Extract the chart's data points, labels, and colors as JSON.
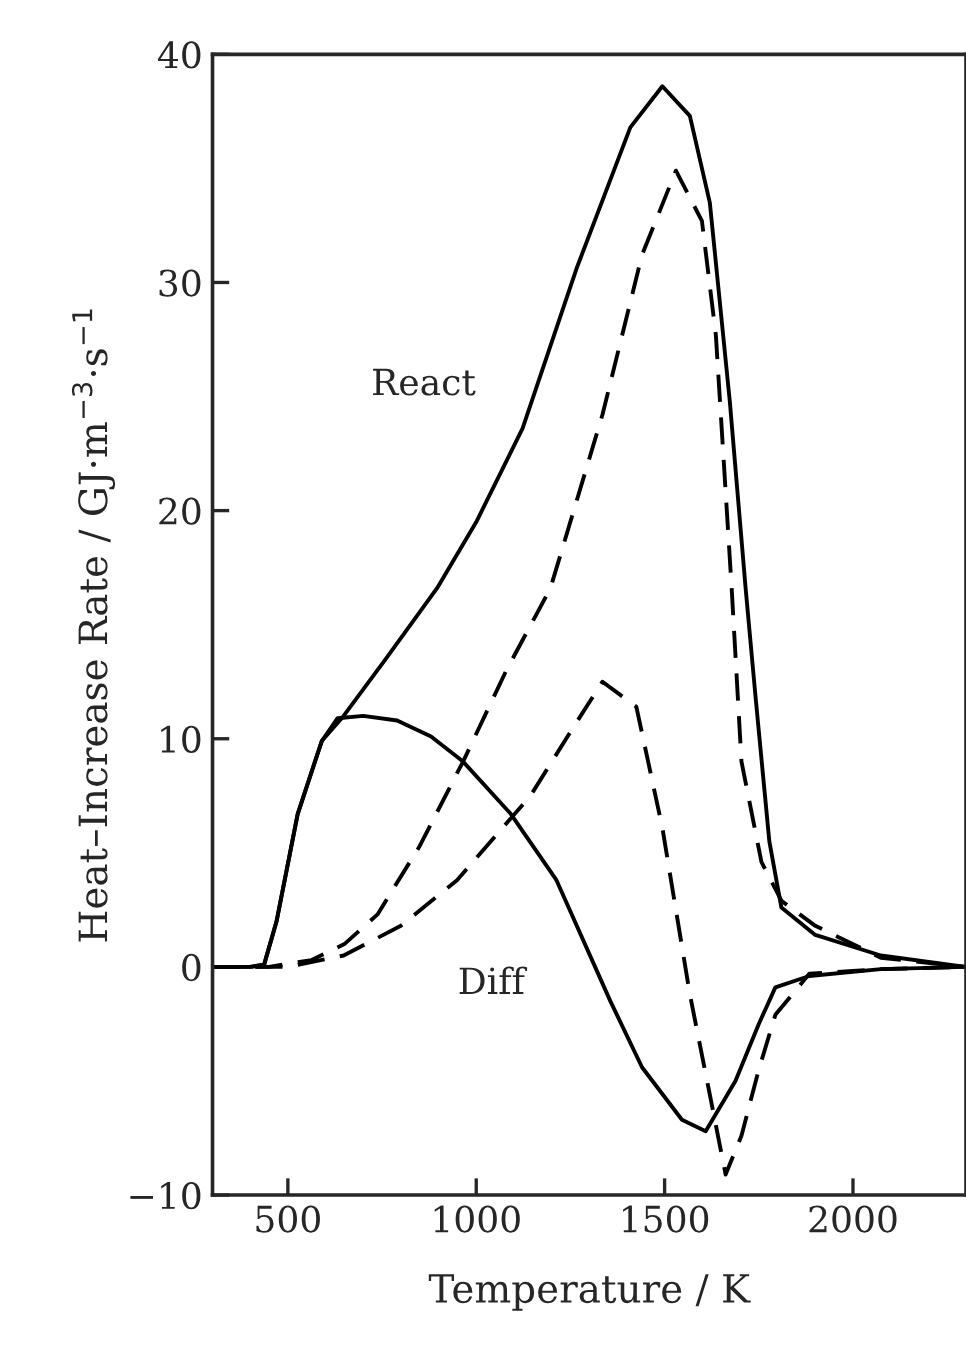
{
  "chart_data": {
    "type": "line",
    "xlabel": "Temperature / K",
    "ylabel": "Heat–Increase Rate / GJ·m$^{−3}$·s$^{−1}$",
    "xlim": [
      300,
      2300
    ],
    "ylim": [
      -10,
      40
    ],
    "xticks": [
      500,
      1000,
      1500,
      2000
    ],
    "yticks": [
      -10,
      0,
      10,
      20,
      30,
      40
    ],
    "grid": false,
    "marker": "none",
    "series": [
      {
        "color": "#000000",
        "line_style": "solid",
        "x": [
          300,
          400,
          437,
          470,
          526,
          590,
          648,
          760,
          896,
          1000,
          1123,
          1266,
          1409,
          1494,
          1567,
          1620,
          1673,
          1715,
          1741,
          1778,
          1810,
          1900,
          2074,
          2300
        ],
        "values": [
          0,
          0,
          0.1,
          2.0,
          6.7,
          9.9,
          11.0,
          13.5,
          16.6,
          19.5,
          23.6,
          30.6,
          36.8,
          38.6,
          37.3,
          33.5,
          24.8,
          16.6,
          11.9,
          5.5,
          2.6,
          1.4,
          0.5,
          0
        ]
      },
      {
        "color": "#000000",
        "line_style": "dashed",
        "x": [
          300,
          450,
          563,
          650,
          738,
          850,
          965,
          1080,
          1197,
          1335,
          1440,
          1530,
          1599,
          1636,
          1678,
          1704,
          1757,
          1810,
          1900,
          2074,
          2300
        ],
        "values": [
          0,
          0,
          0.3,
          1.0,
          2.3,
          5.3,
          9.0,
          13.0,
          16.6,
          24.2,
          31.2,
          34.9,
          32.7,
          27.7,
          16.6,
          9.0,
          4.6,
          2.9,
          1.8,
          0.4,
          0
        ]
      },
      {
        "color": "#000000",
        "line_style": "solid",
        "x": [
          300,
          400,
          437,
          470,
          526,
          590,
          632,
          700,
          790,
          880,
          965,
          1092,
          1213,
          1356,
          1440,
          1546,
          1609,
          1688,
          1750,
          1794,
          1884,
          2074,
          2300
        ],
        "values": [
          0,
          0,
          0.1,
          2.0,
          6.7,
          9.9,
          10.9,
          11.0,
          10.8,
          10.1,
          9.0,
          6.7,
          3.8,
          -1.5,
          -4.4,
          -6.7,
          -7.2,
          -5.0,
          -2.5,
          -0.9,
          -0.4,
          -0.1,
          0
        ]
      },
      {
        "color": "#000000",
        "line_style": "dashed",
        "x": [
          300,
          500,
          648,
          800,
          949,
          1144,
          1250,
          1335,
          1425,
          1494,
          1567,
          1620,
          1662,
          1704,
          1750,
          1794,
          1884,
          2074,
          2300
        ],
        "values": [
          0,
          0,
          0.5,
          1.8,
          3.8,
          7.5,
          10.3,
          12.5,
          11.4,
          6.1,
          -1.2,
          -5.6,
          -9.1,
          -7.4,
          -4.5,
          -2.1,
          -0.3,
          -0.1,
          0
        ]
      }
    ],
    "annotations": [
      "React",
      "Diff"
    ]
  }
}
